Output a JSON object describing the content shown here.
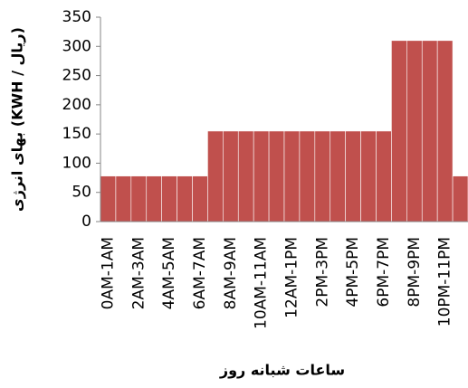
{
  "chart_data": {
    "type": "bar",
    "x_label": "ساعات شبانه روز",
    "y_label": "بهای انرژی (KWH / ریال)",
    "categories": [
      "0AM-1AM",
      null,
      "2AM-3AM",
      null,
      "4AM-5AM",
      null,
      "6AM-7AM",
      null,
      "8AM-9AM",
      null,
      "10AM-11AM",
      null,
      "12AM-1PM",
      null,
      "2PM-3PM",
      null,
      "4PM-5PM",
      null,
      "6PM-7PM",
      null,
      "8PM-9PM",
      null,
      "10PM-11PM",
      null
    ],
    "values": [
      78,
      78,
      78,
      78,
      78,
      78,
      78,
      155,
      155,
      155,
      155,
      155,
      155,
      155,
      155,
      155,
      155,
      155,
      155,
      310,
      310,
      310,
      310,
      78
    ],
    "color": "#c0504d",
    "ylim": [
      0,
      350
    ],
    "yticks": [
      0,
      50,
      100,
      150,
      200,
      250,
      300,
      350
    ],
    "grid": false
  }
}
